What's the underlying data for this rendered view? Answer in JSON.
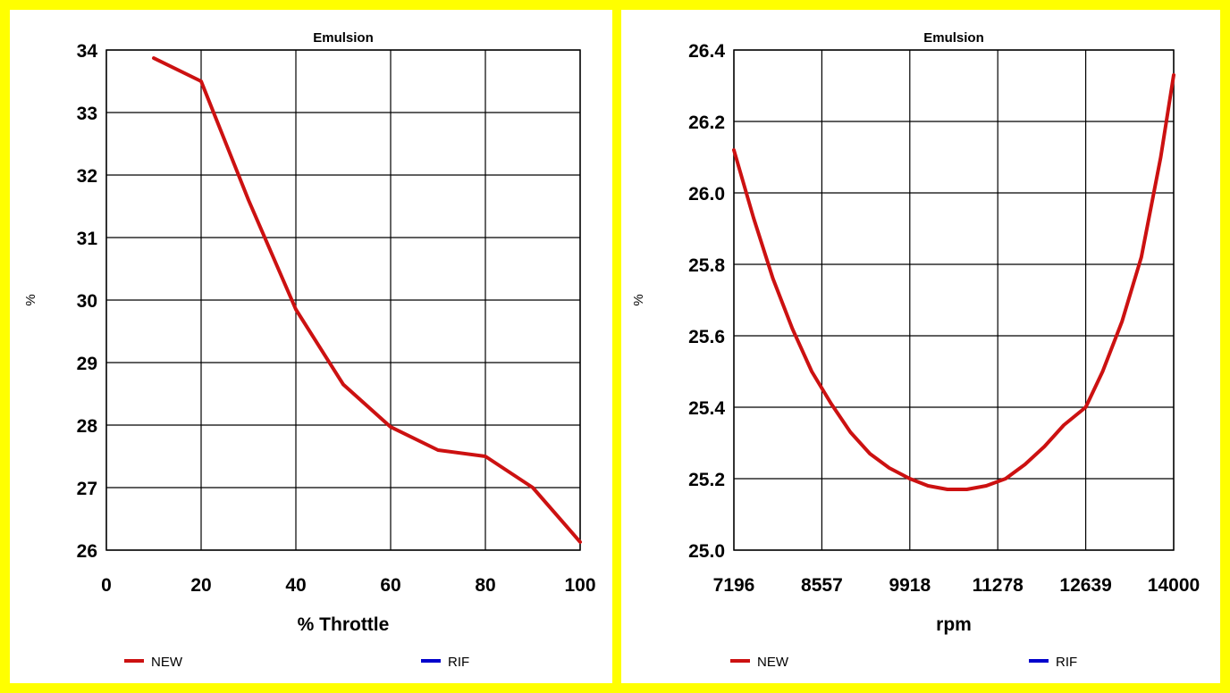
{
  "chart_data": [
    {
      "type": "line",
      "title": "Emulsion",
      "xlabel": "% Throttle",
      "ylabel": "%",
      "xlim": [
        0,
        100
      ],
      "ylim": [
        26,
        34
      ],
      "xticks": [
        "0",
        "20",
        "40",
        "60",
        "80",
        "100"
      ],
      "yticks": [
        "26",
        "27",
        "28",
        "29",
        "30",
        "31",
        "32",
        "33",
        "34"
      ],
      "grid": true,
      "legend_position": "bottom",
      "series": [
        {
          "name": "NEW",
          "color": "#cc1111",
          "x": [
            10,
            20,
            30,
            40,
            50,
            60,
            70,
            80,
            90,
            100
          ],
          "y": [
            33.87,
            33.5,
            31.6,
            29.85,
            28.65,
            27.97,
            27.6,
            27.5,
            27.0,
            26.13
          ]
        },
        {
          "name": "RIF",
          "color": "#0000cc",
          "x": [],
          "y": []
        }
      ]
    },
    {
      "type": "line",
      "title": "Emulsion",
      "xlabel": "rpm",
      "ylabel": "%",
      "xlim": [
        7196,
        14000
      ],
      "ylim": [
        25.0,
        26.4
      ],
      "xticks": [
        "7196",
        "8557",
        "9918",
        "11278",
        "12639",
        "14000"
      ],
      "yticks": [
        "25.0",
        "25.2",
        "25.4",
        "25.6",
        "25.8",
        "26.0",
        "26.2",
        "26.4"
      ],
      "grid": true,
      "legend_position": "bottom",
      "series": [
        {
          "name": "NEW",
          "color": "#cc1111",
          "x": [
            7196,
            7500,
            7800,
            8100,
            8400,
            8700,
            9000,
            9300,
            9600,
            9918,
            10200,
            10500,
            10800,
            11100,
            11400,
            11700,
            12000,
            12300,
            12639,
            12900,
            13200,
            13500,
            13800,
            14000
          ],
          "y": [
            26.12,
            25.93,
            25.76,
            25.62,
            25.5,
            25.41,
            25.33,
            25.27,
            25.23,
            25.2,
            25.18,
            25.17,
            25.17,
            25.18,
            25.2,
            25.24,
            25.29,
            25.35,
            25.4,
            25.5,
            25.64,
            25.82,
            26.1,
            26.33
          ]
        },
        {
          "name": "RIF",
          "color": "#0000cc",
          "x": [],
          "y": []
        }
      ]
    }
  ]
}
